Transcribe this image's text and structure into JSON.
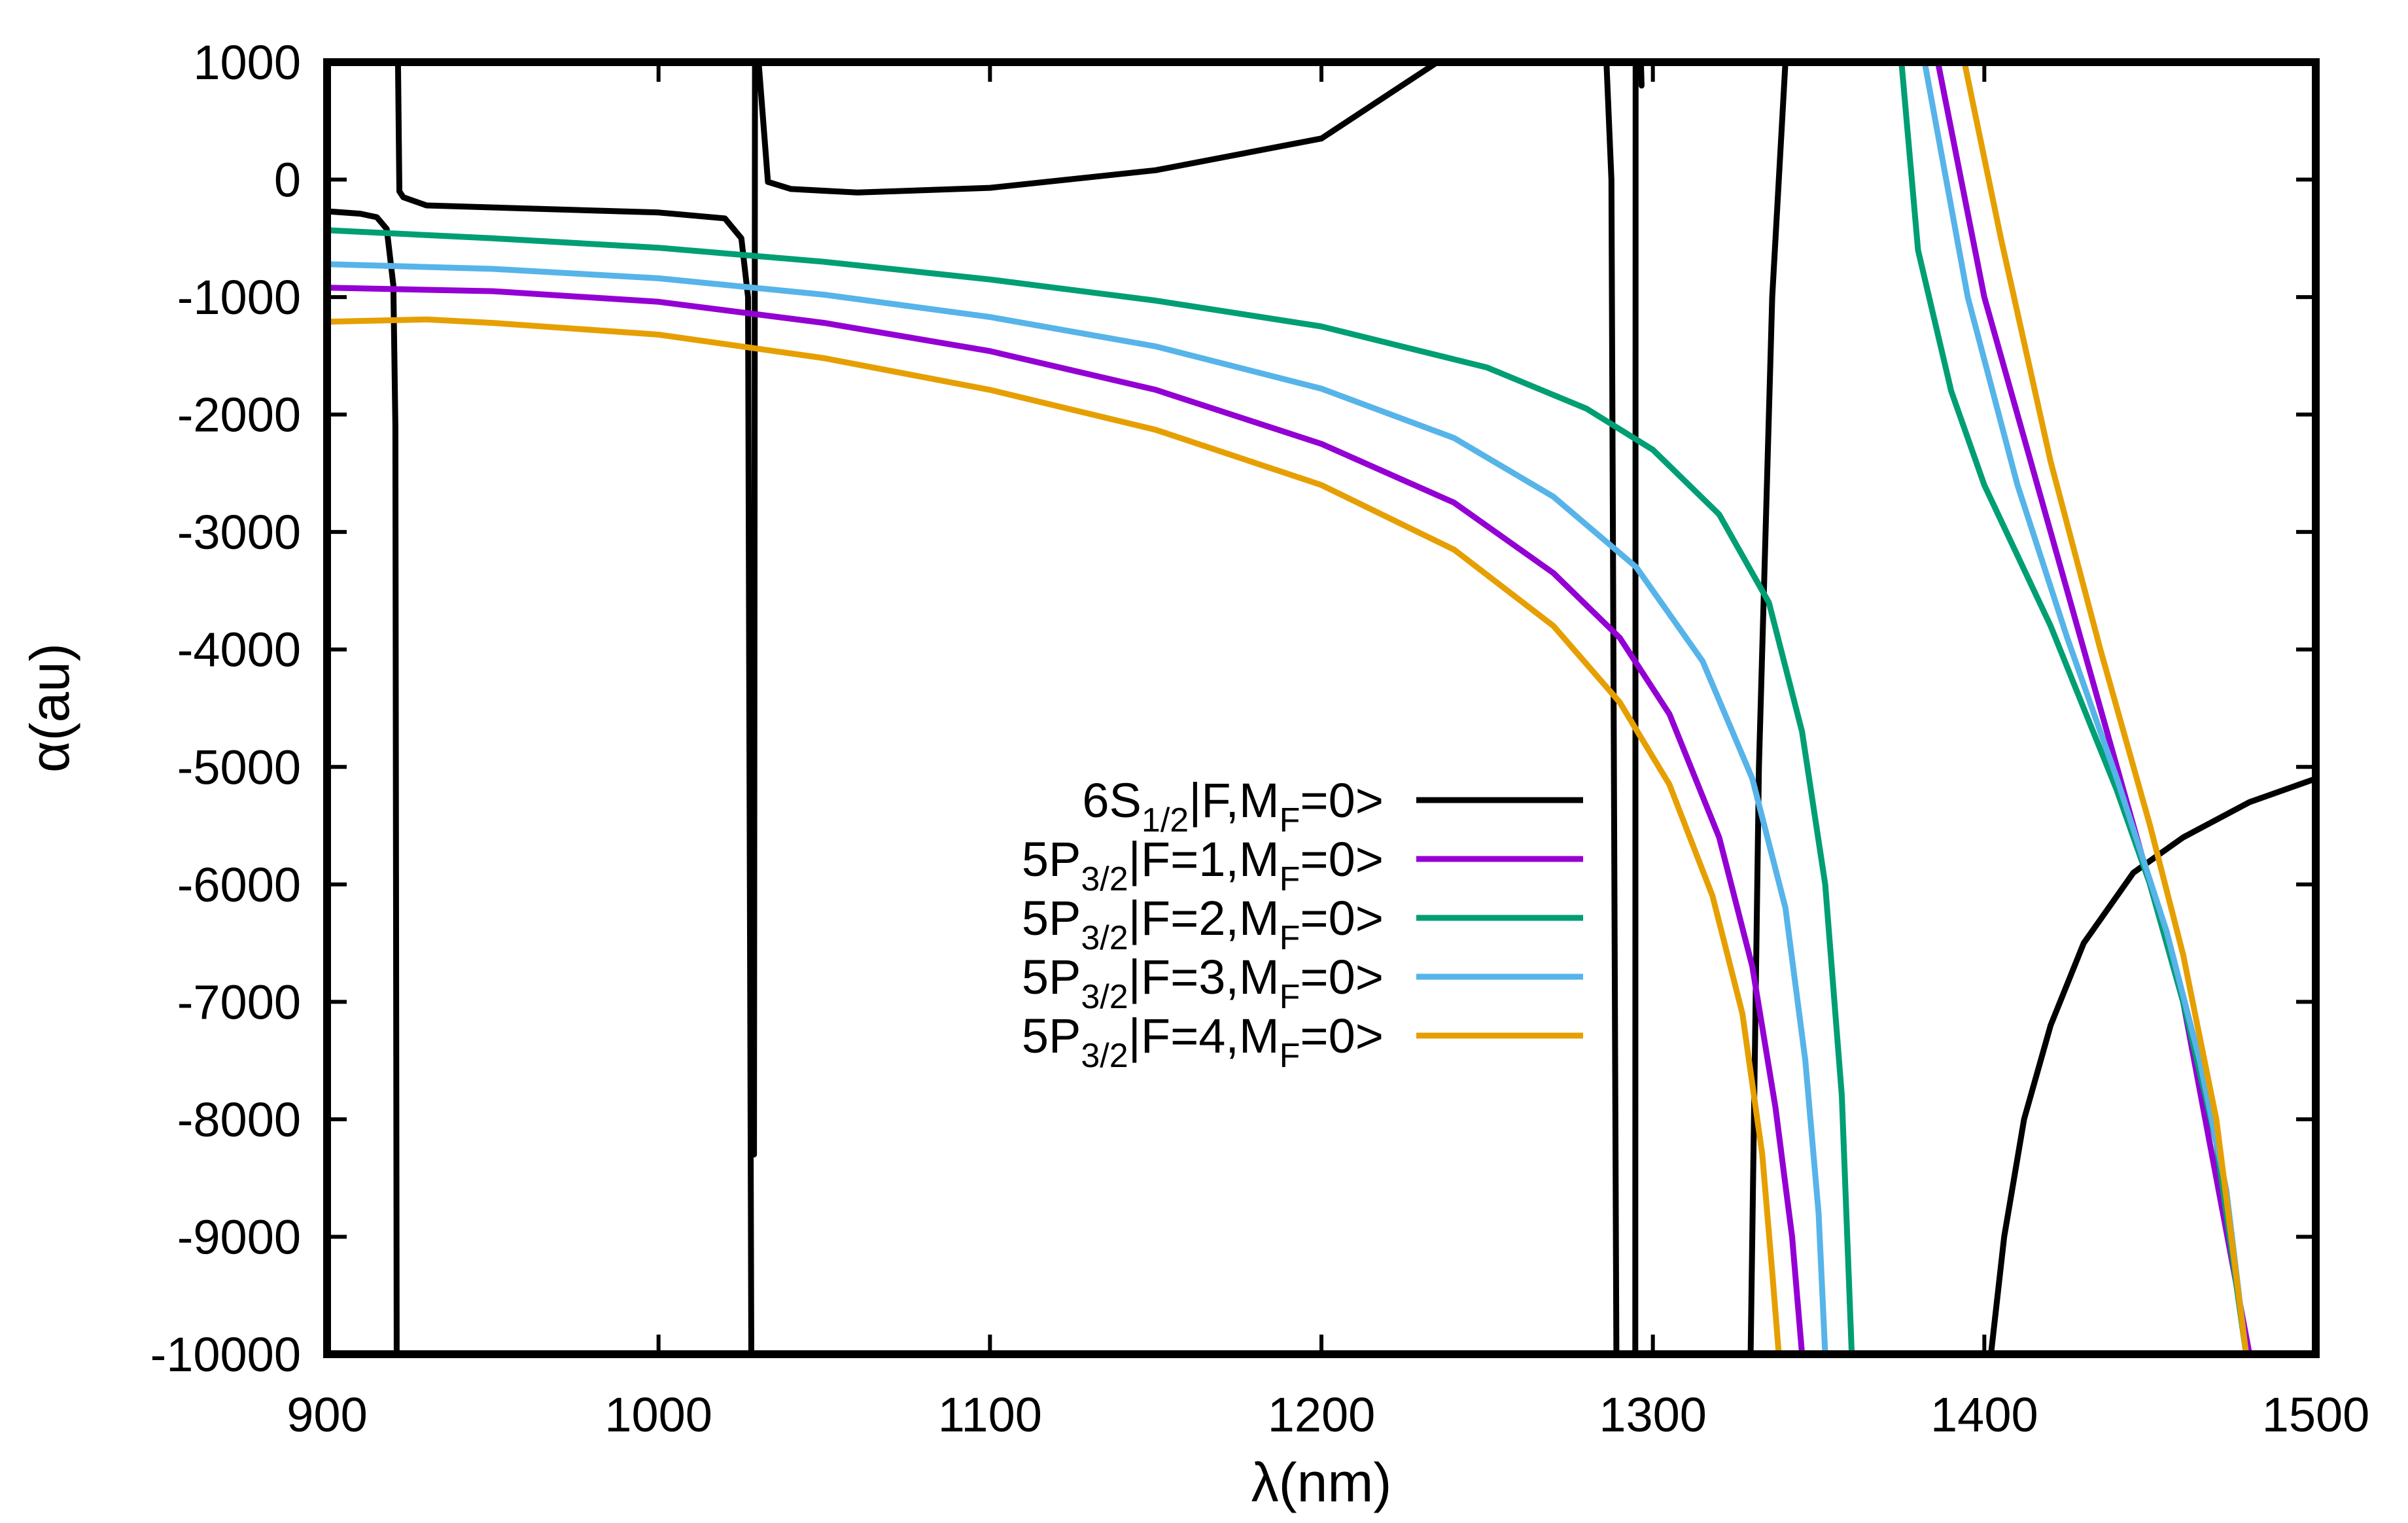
{
  "chart_data": {
    "type": "line",
    "title": "",
    "xlabel": "λ(nm)",
    "ylabel": "α(au)",
    "xlim": [
      900,
      1500
    ],
    "ylim": [
      -10000,
      1000
    ],
    "xticks": [
      900,
      1000,
      1100,
      1200,
      1300,
      1400,
      1500
    ],
    "yticks": [
      1000,
      0,
      -1000,
      -2000,
      -3000,
      -4000,
      -5000,
      -6000,
      -7000,
      -8000,
      -9000,
      -10000
    ],
    "grid": false,
    "legend_position": "center-right",
    "series": [
      {
        "name": "6S1/2|F,MF=0>",
        "label": {
          "pre": "6S",
          "sub1": "1/2",
          "mid": "|F,M",
          "sub2": "F",
          "post": "=0>"
        },
        "color": "#000000",
        "segments": [
          [
            [
              900,
              -270
            ],
            [
              910,
              -290
            ],
            [
              915,
              -320
            ],
            [
              918,
              -420
            ],
            [
              920,
              -900
            ],
            [
              920.6,
              -2100
            ],
            [
              921,
              -10000
            ]
          ],
          [
            [
              921.4,
              1000
            ],
            [
              921.8,
              -100
            ],
            [
              923,
              -150
            ],
            [
              930,
              -220
            ],
            [
              1000,
              -280
            ],
            [
              1020,
              -330
            ],
            [
              1025,
              -500
            ],
            [
              1027,
              -1000
            ],
            [
              1028,
              -10000
            ]
          ],
          [
            [
              1028.8,
              -8300
            ],
            [
              1029.1,
              1000
            ]
          ],
          [
            [
              1030.2,
              1000
            ],
            [
              1033,
              -20
            ],
            [
              1040,
              -80
            ],
            [
              1060,
              -110
            ],
            [
              1100,
              -70
            ],
            [
              1150,
              80
            ],
            [
              1200,
              350
            ],
            [
              1235,
              1000
            ]
          ],
          [
            [
              1286,
              1000
            ],
            [
              1287.5,
              0
            ],
            [
              1289,
              -10000
            ]
          ],
          [
            [
              1294.7,
              -10000
            ],
            [
              1294.8,
              1000
            ]
          ],
          [
            [
              1296.4,
              1000
            ],
            [
              1296.6,
              800
            ]
          ],
          [
            [
              1329.5,
              -10000
            ],
            [
              1332,
              -5000
            ],
            [
              1336,
              -1000
            ],
            [
              1340,
              1000
            ]
          ],
          [
            [
              1402,
              -10000
            ],
            [
              1406,
              -9000
            ],
            [
              1412,
              -8000
            ],
            [
              1420,
              -7200
            ],
            [
              1430,
              -6500
            ],
            [
              1445,
              -5900
            ],
            [
              1460,
              -5600
            ],
            [
              1480,
              -5300
            ],
            [
              1500,
              -5100
            ]
          ]
        ]
      },
      {
        "name": "5P3/2|F=1,MF=0>",
        "label": {
          "pre": "5P",
          "sub1": "3/2",
          "mid": "|F=1,M",
          "sub2": "F",
          "post": "=0>"
        },
        "color": "#9400d3",
        "segments": [
          [
            [
              900,
              -920
            ],
            [
              950,
              -950
            ],
            [
              1000,
              -1040
            ],
            [
              1050,
              -1220
            ],
            [
              1100,
              -1460
            ],
            [
              1150,
              -1790
            ],
            [
              1200,
              -2250
            ],
            [
              1240,
              -2750
            ],
            [
              1270,
              -3350
            ],
            [
              1290,
              -3900
            ],
            [
              1305,
              -4550
            ],
            [
              1320,
              -5600
            ],
            [
              1330,
              -6700
            ],
            [
              1337,
              -7900
            ],
            [
              1342,
              -9000
            ],
            [
              1345,
              -10000
            ]
          ],
          [
            [
              1386,
              1000
            ],
            [
              1400,
              -1000
            ],
            [
              1420,
              -3000
            ],
            [
              1440,
              -5000
            ],
            [
              1460,
              -7000
            ],
            [
              1470,
              -8500
            ],
            [
              1480,
              -10000
            ]
          ]
        ]
      },
      {
        "name": "5P3/2|F=2,MF=0>",
        "label": {
          "pre": "5P",
          "sub1": "3/2",
          "mid": "|F=2,M",
          "sub2": "F",
          "post": "=0>"
        },
        "color": "#009e73",
        "segments": [
          [
            [
              900,
              -430
            ],
            [
              950,
              -500
            ],
            [
              1000,
              -580
            ],
            [
              1050,
              -700
            ],
            [
              1100,
              -850
            ],
            [
              1150,
              -1030
            ],
            [
              1200,
              -1250
            ],
            [
              1250,
              -1600
            ],
            [
              1280,
              -1950
            ],
            [
              1300,
              -2300
            ],
            [
              1320,
              -2850
            ],
            [
              1335,
              -3600
            ],
            [
              1345,
              -4700
            ],
            [
              1352,
              -6000
            ],
            [
              1357,
              -7800
            ],
            [
              1360,
              -10000
            ]
          ],
          [
            [
              1375,
              1000
            ],
            [
              1380,
              -600
            ],
            [
              1390,
              -1800
            ],
            [
              1400,
              -2600
            ],
            [
              1410,
              -3200
            ],
            [
              1420,
              -3800
            ],
            [
              1430,
              -4500
            ],
            [
              1440,
              -5200
            ],
            [
              1450,
              -6000
            ],
            [
              1460,
              -7000
            ],
            [
              1470,
              -8200
            ],
            [
              1479,
              -10000
            ]
          ]
        ]
      },
      {
        "name": "5P3/2|F=3,MF=0>",
        "label": {
          "pre": "5P",
          "sub1": "3/2",
          "mid": "|F=3,M",
          "sub2": "F",
          "post": "=0>"
        },
        "color": "#56b4e9",
        "segments": [
          [
            [
              900,
              -720
            ],
            [
              950,
              -760
            ],
            [
              1000,
              -840
            ],
            [
              1050,
              -980
            ],
            [
              1100,
              -1170
            ],
            [
              1150,
              -1420
            ],
            [
              1200,
              -1780
            ],
            [
              1240,
              -2200
            ],
            [
              1270,
              -2700
            ],
            [
              1295,
              -3300
            ],
            [
              1315,
              -4100
            ],
            [
              1330,
              -5100
            ],
            [
              1340,
              -6200
            ],
            [
              1346,
              -7500
            ],
            [
              1350,
              -8800
            ],
            [
              1352,
              -10000
            ]
          ],
          [
            [
              1382,
              1000
            ],
            [
              1395,
              -1000
            ],
            [
              1410,
              -2600
            ],
            [
              1425,
              -3900
            ],
            [
              1440,
              -5100
            ],
            [
              1455,
              -6400
            ],
            [
              1465,
              -7500
            ],
            [
              1473,
              -8600
            ],
            [
              1479,
              -10000
            ]
          ]
        ]
      },
      {
        "name": "5P3/2|F=4,MF=0>",
        "label": {
          "pre": "5P",
          "sub1": "3/2",
          "mid": "|F=4,M",
          "sub2": "F",
          "post": "=0>"
        },
        "color": "#e69f00",
        "segments": [
          [
            [
              900,
              -1210
            ],
            [
              930,
              -1190
            ],
            [
              950,
              -1220
            ],
            [
              1000,
              -1320
            ],
            [
              1050,
              -1520
            ],
            [
              1100,
              -1790
            ],
            [
              1150,
              -2130
            ],
            [
              1200,
              -2600
            ],
            [
              1240,
              -3150
            ],
            [
              1270,
              -3800
            ],
            [
              1290,
              -4450
            ],
            [
              1305,
              -5150
            ],
            [
              1318,
              -6100
            ],
            [
              1327,
              -7100
            ],
            [
              1333,
              -8300
            ],
            [
              1336,
              -9300
            ],
            [
              1338,
              -10000
            ]
          ],
          [
            [
              1394,
              1000
            ],
            [
              1405,
              -500
            ],
            [
              1420,
              -2400
            ],
            [
              1435,
              -4000
            ],
            [
              1450,
              -5500
            ],
            [
              1460,
              -6600
            ],
            [
              1470,
              -8000
            ],
            [
              1479,
              -10000
            ]
          ]
        ]
      }
    ]
  }
}
